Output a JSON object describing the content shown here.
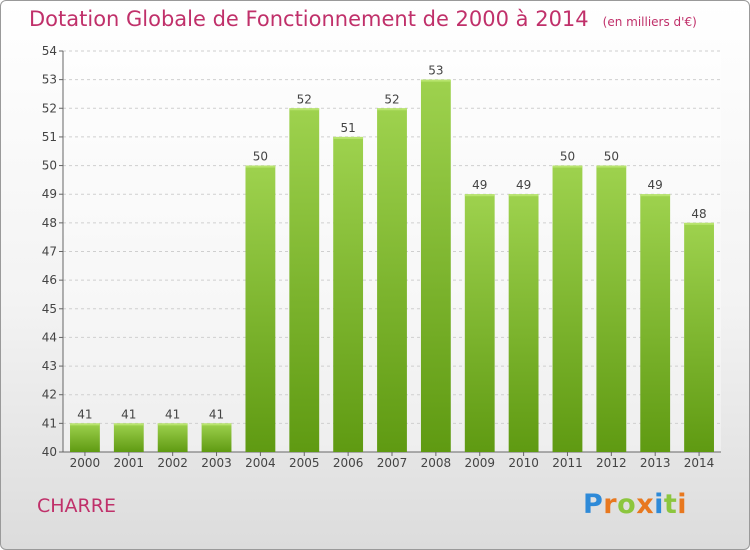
{
  "title": "Dotation Globale de Fonctionnement de 2000 à 2014",
  "subtitle": "(en milliers d'€)",
  "town": "CHARRE",
  "logo": {
    "letters": [
      "P",
      "r",
      "o",
      "x",
      "i",
      "t",
      "i"
    ],
    "colors": [
      "#2e8ad8",
      "#e8781f",
      "#8cc63e",
      "#e8781f",
      "#2e8ad8",
      "#8cc63e",
      "#e8781f"
    ]
  },
  "colors": {
    "bar_top": "#9ed24e",
    "bar_bottom": "#5f9a12",
    "title": "#c0306a"
  },
  "chart_data": {
    "type": "bar",
    "categories": [
      "2000",
      "2001",
      "2002",
      "2003",
      "2004",
      "2005",
      "2006",
      "2007",
      "2008",
      "2009",
      "2010",
      "2011",
      "2012",
      "2013",
      "2014"
    ],
    "values": [
      41,
      41,
      41,
      41,
      50,
      52,
      51,
      52,
      53,
      49,
      49,
      50,
      50,
      49,
      48
    ],
    "title": "Dotation Globale de Fonctionnement de 2000 à 2014",
    "subtitle": "(en milliers d'€)",
    "xlabel": "",
    "ylabel": "",
    "ylim": [
      40,
      54
    ],
    "yticks": [
      40,
      41,
      42,
      43,
      44,
      45,
      46,
      47,
      48,
      49,
      50,
      51,
      52,
      53,
      54
    ],
    "grid": true,
    "data_labels": true
  }
}
